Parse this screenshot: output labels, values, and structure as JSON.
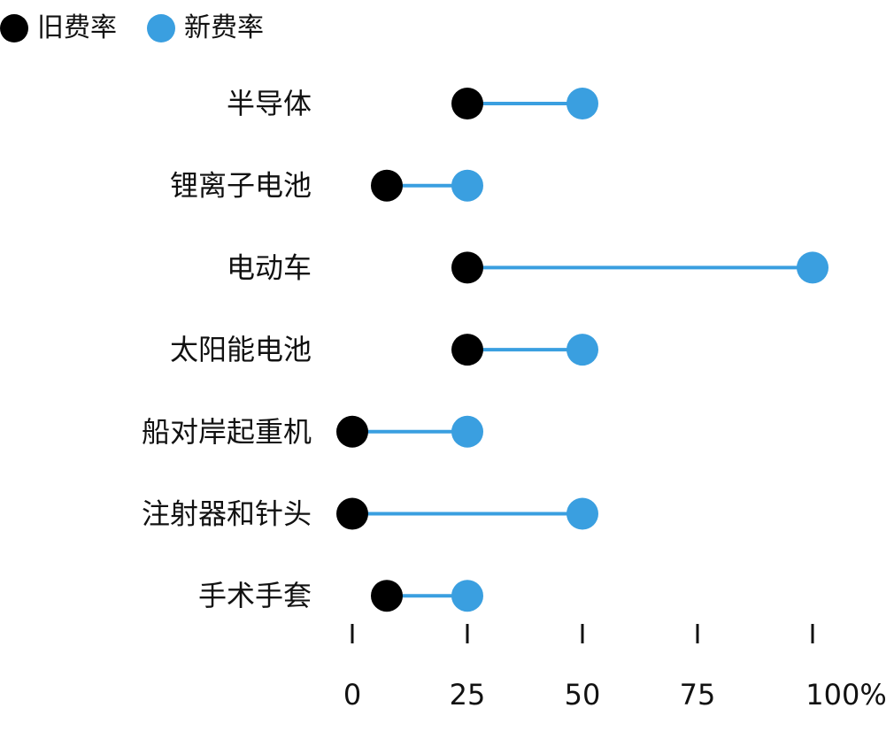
{
  "legend": {
    "old": {
      "label": "旧费率",
      "color": "#000000"
    },
    "new": {
      "label": "新费率",
      "color": "#3a9fe0"
    }
  },
  "chart_data": {
    "type": "dumbbell",
    "categories": [
      "半导体",
      "锂离子电池",
      "电动车",
      "太阳能电池",
      "船对岸起重机",
      "注射器和针头",
      "手术手套"
    ],
    "series": [
      {
        "name": "旧费率",
        "values": [
          25,
          7.5,
          25,
          25,
          0,
          0,
          7.5
        ]
      },
      {
        "name": "新费率",
        "values": [
          50,
          25,
          100,
          50,
          25,
          50,
          25
        ]
      }
    ],
    "xticks": [
      0,
      25,
      50,
      75,
      100
    ],
    "xtick_labels": [
      "0",
      "25",
      "50",
      "75",
      "100%"
    ],
    "xlim": [
      0,
      100
    ],
    "line_color": "#3a9fe0",
    "grid": false,
    "legend_position": "top-left"
  }
}
